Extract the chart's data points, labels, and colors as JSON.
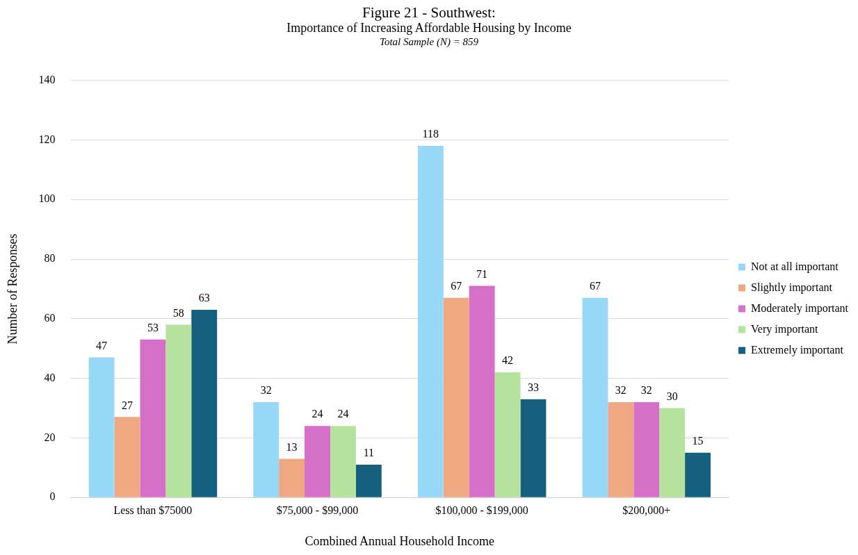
{
  "chart_data": {
    "type": "bar",
    "title": "Figure 21 - Southwest:",
    "subtitle": "Importance of Increasing Affordable Housing by Income",
    "annotations": [
      "Total Sample (N) = 859"
    ],
    "xlabel": "Combined Annual Household Income",
    "ylabel": "Number of Responses",
    "categories": [
      "Less than $75000",
      "$75,000 - $99,000",
      "$100,000 - $199,000",
      "$200,000+"
    ],
    "series": [
      {
        "name": "Not at all important",
        "color": "#97d7f7",
        "values": [
          47,
          32,
          118,
          67
        ]
      },
      {
        "name": "Slightly important",
        "color": "#f0a882",
        "values": [
          27,
          13,
          67,
          32
        ]
      },
      {
        "name": "Moderately important",
        "color": "#d66fc8",
        "values": [
          53,
          24,
          71,
          32
        ]
      },
      {
        "name": "Very important",
        "color": "#b5e29c",
        "values": [
          58,
          24,
          42,
          30
        ]
      },
      {
        "name": "Extremely important",
        "color": "#15607f",
        "values": [
          63,
          11,
          33,
          15
        ]
      }
    ],
    "ylim": [
      0,
      140
    ],
    "yticks": [
      0,
      20,
      40,
      60,
      80,
      100,
      120,
      140
    ],
    "grid": "y",
    "legend": "right",
    "data_labels": true
  }
}
